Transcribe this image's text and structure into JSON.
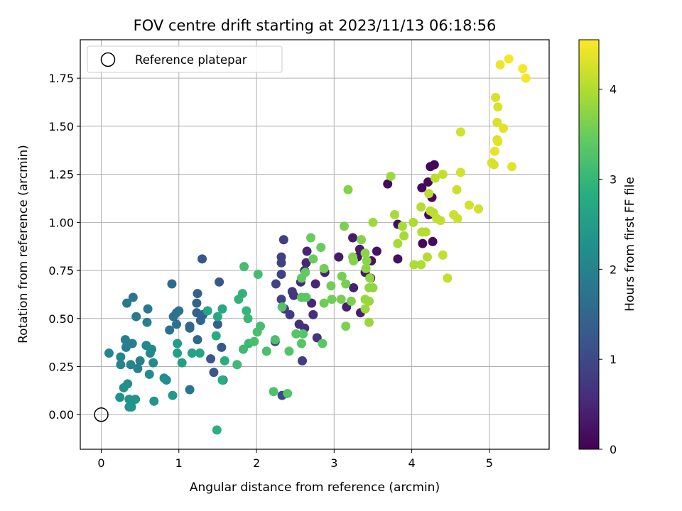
{
  "chart_data": {
    "type": "scatter",
    "title": "FOV centre drift starting at 2023/11/13 06:18:56",
    "xlabel": "Angular distance from reference (arcmin)",
    "ylabel": "Rotation from reference (arcmin)",
    "xlim": [
      -0.27,
      5.77
    ],
    "ylim": [
      -0.18,
      1.95
    ],
    "xticks": [
      0,
      1,
      2,
      3,
      4,
      5
    ],
    "yticks": [
      0.0,
      0.25,
      0.5,
      0.75,
      1.0,
      1.25,
      1.5,
      1.75
    ],
    "ytick_labels": [
      "0.00",
      "0.25",
      "0.50",
      "0.75",
      "1.00",
      "1.25",
      "1.50",
      "1.75"
    ],
    "grid": true,
    "legend": {
      "placement": "upper-left",
      "entries": [
        "Reference platepar"
      ]
    },
    "reference_point": {
      "x": 0,
      "y": 0
    },
    "colorbar": {
      "label": "Hours from first FF file",
      "colormap": "viridis",
      "range": [
        0,
        4.55
      ],
      "ticks": [
        0,
        1,
        2,
        3,
        4
      ]
    },
    "series": [
      {
        "point_keys": [
          "x",
          "y",
          "c"
        ],
        "points": [
          [
            4.29,
            1.3,
            0.05
          ],
          [
            4.24,
            1.29,
            0.08
          ],
          [
            4.21,
            1.21,
            0.1
          ],
          [
            4.13,
            1.18,
            0.12
          ],
          [
            4.26,
            1.13,
            0.1
          ],
          [
            4.22,
            1.04,
            0.1
          ],
          [
            4.27,
            0.9,
            0.12
          ],
          [
            4.14,
            0.89,
            0.1
          ],
          [
            3.69,
            1.2,
            0.15
          ],
          [
            3.82,
            0.99,
            0.18
          ],
          [
            3.82,
            0.81,
            0.2
          ],
          [
            3.55,
            0.85,
            0.25
          ],
          [
            3.48,
            0.8,
            0.25
          ],
          [
            3.47,
            0.71,
            0.25
          ],
          [
            3.4,
            0.74,
            0.3
          ],
          [
            3.3,
            0.82,
            0.3
          ],
          [
            3.33,
            0.86,
            0.35
          ],
          [
            3.24,
            0.92,
            0.35
          ],
          [
            3.06,
            0.82,
            0.35
          ],
          [
            3.34,
            0.53,
            0.4
          ],
          [
            3.16,
            0.56,
            0.4
          ],
          [
            3.25,
            0.66,
            0.45
          ],
          [
            2.88,
            0.74,
            0.45
          ],
          [
            2.76,
            0.68,
            0.5
          ],
          [
            2.71,
            0.58,
            0.5
          ],
          [
            2.65,
            0.85,
            0.5
          ],
          [
            2.64,
            0.79,
            0.5
          ],
          [
            2.57,
            0.69,
            0.55
          ],
          [
            2.62,
            0.75,
            0.6
          ],
          [
            2.55,
            0.47,
            0.6
          ],
          [
            2.62,
            0.45,
            0.6
          ],
          [
            2.73,
            0.52,
            0.65
          ],
          [
            2.78,
            0.4,
            0.7
          ],
          [
            2.48,
            0.62,
            0.7
          ],
          [
            2.46,
            0.64,
            0.75
          ],
          [
            2.36,
            0.55,
            0.8
          ],
          [
            2.43,
            0.52,
            0.8
          ],
          [
            2.59,
            0.28,
            0.85
          ],
          [
            2.35,
            0.91,
            0.85
          ],
          [
            2.32,
            0.82,
            0.9
          ],
          [
            2.32,
            0.79,
            0.9
          ],
          [
            2.32,
            0.73,
            0.9
          ],
          [
            2.32,
            0.6,
            0.9
          ],
          [
            2.25,
            0.68,
            0.95
          ],
          [
            2.24,
            0.38,
            0.95
          ],
          [
            2.33,
            0.1,
            1.0
          ],
          [
            1.3,
            0.81,
            1.2
          ],
          [
            1.52,
            0.69,
            1.25
          ],
          [
            1.41,
            0.29,
            1.25
          ],
          [
            1.45,
            0.22,
            1.25
          ],
          [
            1.55,
            0.35,
            1.3
          ],
          [
            1.57,
            0.18,
            1.35
          ],
          [
            1.5,
            0.47,
            1.4
          ],
          [
            1.24,
            0.63,
            1.4
          ],
          [
            1.23,
            0.58,
            1.45
          ],
          [
            1.23,
            0.53,
            1.45
          ],
          [
            1.31,
            0.52,
            1.5
          ],
          [
            1.28,
            0.49,
            1.5
          ],
          [
            1.14,
            0.45,
            1.55
          ],
          [
            1.14,
            0.46,
            1.55
          ],
          [
            1.24,
            0.39,
            1.55
          ],
          [
            0.91,
            0.68,
            1.6
          ],
          [
            0.93,
            0.51,
            1.7
          ],
          [
            0.97,
            0.53,
            1.7
          ],
          [
            0.97,
            0.47,
            1.7
          ],
          [
            0.88,
            0.44,
            1.7
          ],
          [
            1.0,
            0.54,
            1.75
          ],
          [
            1.14,
            0.13,
            1.8
          ],
          [
            0.41,
            0.61,
            1.8
          ],
          [
            0.33,
            0.58,
            1.85
          ],
          [
            0.45,
            0.51,
            1.85
          ],
          [
            0.6,
            0.55,
            1.85
          ],
          [
            0.59,
            0.48,
            1.95
          ],
          [
            0.4,
            0.37,
            1.95
          ],
          [
            0.31,
            0.39,
            1.95
          ],
          [
            0.32,
            0.35,
            2.0
          ],
          [
            0.5,
            0.28,
            2.0
          ],
          [
            0.47,
            0.24,
            2.0
          ],
          [
            0.38,
            0.26,
            2.05
          ],
          [
            0.25,
            0.26,
            2.05
          ],
          [
            0.25,
            0.3,
            2.05
          ],
          [
            0.1,
            0.32,
            2.1
          ],
          [
            0.58,
            0.36,
            2.1
          ],
          [
            0.65,
            0.34,
            2.15
          ],
          [
            0.63,
            0.32,
            2.15
          ],
          [
            0.67,
            0.27,
            2.2
          ],
          [
            0.62,
            0.21,
            2.2
          ],
          [
            0.81,
            0.19,
            2.25
          ],
          [
            0.84,
            0.18,
            2.25
          ],
          [
            0.34,
            0.16,
            2.3
          ],
          [
            0.29,
            0.14,
            2.3
          ],
          [
            0.24,
            0.09,
            2.3
          ],
          [
            0.36,
            0.08,
            2.35
          ],
          [
            0.44,
            0.08,
            2.35
          ],
          [
            0.36,
            0.04,
            2.35
          ],
          [
            0.39,
            0.04,
            2.4
          ],
          [
            0.68,
            0.07,
            2.4
          ],
          [
            0.92,
            0.1,
            2.45
          ],
          [
            0.98,
            0.37,
            2.5
          ],
          [
            1.04,
            0.27,
            2.55
          ],
          [
            0.98,
            0.32,
            2.55
          ],
          [
            1.17,
            0.32,
            2.6
          ],
          [
            1.27,
            0.32,
            2.65
          ],
          [
            1.37,
            0.54,
            2.7
          ],
          [
            1.5,
            0.51,
            2.75
          ],
          [
            1.56,
            0.55,
            2.75
          ],
          [
            1.48,
            0.41,
            2.8
          ],
          [
            1.59,
            0.28,
            2.85
          ],
          [
            1.56,
            0.18,
            2.85
          ],
          [
            1.49,
            -0.08,
            2.9
          ],
          [
            1.77,
            0.6,
            2.95
          ],
          [
            1.82,
            0.63,
            2.95
          ],
          [
            1.87,
            0.54,
            3.0
          ],
          [
            1.89,
            0.5,
            3.05
          ],
          [
            1.9,
            0.37,
            3.05
          ],
          [
            1.83,
            0.34,
            3.1
          ],
          [
            1.75,
            0.26,
            3.1
          ],
          [
            1.84,
            0.77,
            3.15
          ],
          [
            2.02,
            0.73,
            3.15
          ],
          [
            2.05,
            0.46,
            3.15
          ],
          [
            2.01,
            0.43,
            3.2
          ],
          [
            1.97,
            0.38,
            3.2
          ],
          [
            2.13,
            0.33,
            3.2
          ],
          [
            2.24,
            0.39,
            3.25
          ],
          [
            2.22,
            0.12,
            3.25
          ],
          [
            2.4,
            0.11,
            3.3
          ],
          [
            2.42,
            0.33,
            3.3
          ],
          [
            2.33,
            0.56,
            3.3
          ],
          [
            2.51,
            0.42,
            3.35
          ],
          [
            2.58,
            0.37,
            3.35
          ],
          [
            2.6,
            0.42,
            3.35
          ],
          [
            2.85,
            0.37,
            3.4
          ],
          [
            2.58,
            0.61,
            3.4
          ],
          [
            2.64,
            0.61,
            3.4
          ],
          [
            2.58,
            0.71,
            3.45
          ],
          [
            2.63,
            0.74,
            3.45
          ],
          [
            2.7,
            0.92,
            3.5
          ],
          [
            2.73,
            0.81,
            3.5
          ],
          [
            2.83,
            0.87,
            3.5
          ],
          [
            2.87,
            0.58,
            3.55
          ],
          [
            2.97,
            0.6,
            3.55
          ],
          [
            2.96,
            0.67,
            3.55
          ],
          [
            2.87,
            0.76,
            3.6
          ],
          [
            3.1,
            0.72,
            3.6
          ],
          [
            3.15,
            0.68,
            3.6
          ],
          [
            3.09,
            0.6,
            3.6
          ],
          [
            3.15,
            0.46,
            3.65
          ],
          [
            3.22,
            0.59,
            3.65
          ],
          [
            3.13,
            0.98,
            3.65
          ],
          [
            3.18,
            1.17,
            3.7
          ],
          [
            3.24,
            0.82,
            3.7
          ],
          [
            3.25,
            0.8,
            3.7
          ],
          [
            3.35,
            0.91,
            3.7
          ],
          [
            3.4,
            0.84,
            3.75
          ],
          [
            3.42,
            0.8,
            3.75
          ],
          [
            3.41,
            0.76,
            3.75
          ],
          [
            3.46,
            0.71,
            3.8
          ],
          [
            3.45,
            0.66,
            3.8
          ],
          [
            3.5,
            0.66,
            3.8
          ],
          [
            3.4,
            0.6,
            3.85
          ],
          [
            3.45,
            0.59,
            3.85
          ],
          [
            3.4,
            0.55,
            3.85
          ],
          [
            3.45,
            0.48,
            3.85
          ],
          [
            3.5,
            1.0,
            3.9
          ],
          [
            3.73,
            1.24,
            3.9
          ],
          [
            3.78,
            1.04,
            3.95
          ],
          [
            3.88,
            0.98,
            3.95
          ],
          [
            3.9,
            0.93,
            3.95
          ],
          [
            3.82,
            0.89,
            3.95
          ],
          [
            4.02,
            1.0,
            4.0
          ],
          [
            4.03,
            0.78,
            4.0
          ],
          [
            4.12,
            0.78,
            4.0
          ],
          [
            4.12,
            1.08,
            4.05
          ],
          [
            4.13,
            0.95,
            4.05
          ],
          [
            4.18,
            0.95,
            4.05
          ],
          [
            4.2,
            0.82,
            4.05
          ],
          [
            4.24,
            1.06,
            4.1
          ],
          [
            4.28,
            1.05,
            4.1
          ],
          [
            4.3,
            1.23,
            4.1
          ],
          [
            4.22,
            1.15,
            4.1
          ],
          [
            4.32,
            1.02,
            4.15
          ],
          [
            4.37,
            1.01,
            4.15
          ],
          [
            4.4,
            1.25,
            4.15
          ],
          [
            4.4,
            0.83,
            4.15
          ],
          [
            4.46,
            0.71,
            4.15
          ],
          [
            4.54,
            1.04,
            4.2
          ],
          [
            4.58,
            1.17,
            4.2
          ],
          [
            4.59,
            1.02,
            4.2
          ],
          [
            4.63,
            1.47,
            4.25
          ],
          [
            4.63,
            1.26,
            4.25
          ],
          [
            4.74,
            1.09,
            4.25
          ],
          [
            4.86,
            1.07,
            4.25
          ],
          [
            5.03,
            1.31,
            4.3
          ],
          [
            5.06,
            1.3,
            4.3
          ],
          [
            5.08,
            1.65,
            4.3
          ],
          [
            5.1,
            1.52,
            4.3
          ],
          [
            5.11,
            1.6,
            4.3
          ],
          [
            5.1,
            1.43,
            4.3
          ],
          [
            5.11,
            1.42,
            4.35
          ],
          [
            5.18,
            1.49,
            4.35
          ],
          [
            5.29,
            1.29,
            4.35
          ],
          [
            5.07,
            1.37,
            4.4
          ],
          [
            5.14,
            1.82,
            4.45
          ],
          [
            5.25,
            1.85,
            4.5
          ],
          [
            5.43,
            1.8,
            4.5
          ],
          [
            5.47,
            1.75,
            4.5
          ]
        ]
      }
    ]
  }
}
